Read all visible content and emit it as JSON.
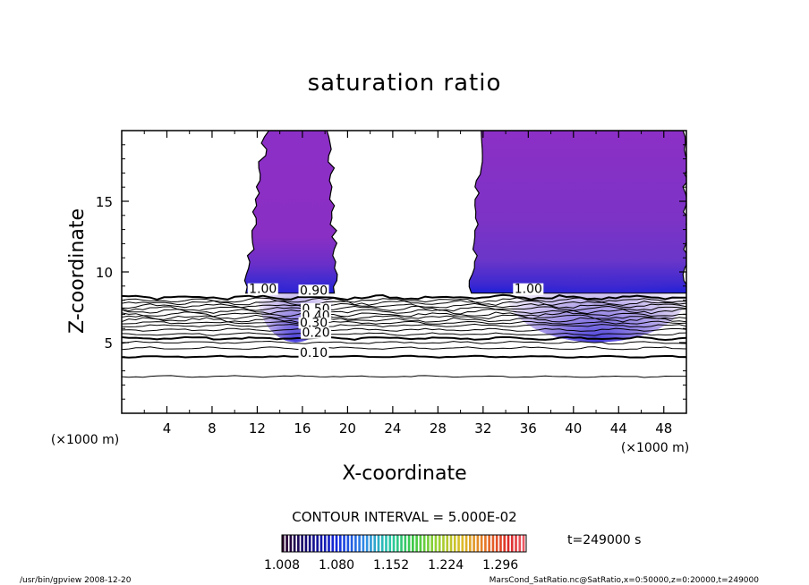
{
  "chart_data": {
    "type": "contour",
    "title": "saturation ratio",
    "xlabel": "X-coordinate",
    "ylabel": "Z-coordinate",
    "x_unit": "(×1000 m)",
    "z_unit": "(×1000 m)",
    "xlim": [
      0,
      50
    ],
    "zlim": [
      0,
      20
    ],
    "x_ticks": [
      4,
      8,
      12,
      16,
      20,
      24,
      28,
      32,
      36,
      40,
      44,
      48
    ],
    "z_ticks": [
      5,
      10,
      15
    ],
    "contour_interval_text": "CONTOUR INTERVAL = 5.000E-02",
    "contour_labels": [
      {
        "text": "1.00",
        "x": 12.5,
        "z": 8.5
      },
      {
        "text": "1.00",
        "x": 36.0,
        "z": 8.5
      },
      {
        "text": "0.90",
        "x": 17.0,
        "z": 8.4
      },
      {
        "text": "0.50",
        "x": 17.2,
        "z": 7.1
      },
      {
        "text": "0.40",
        "x": 17.2,
        "z": 6.6
      },
      {
        "text": "0.30",
        "x": 17.0,
        "z": 6.1
      },
      {
        "text": "0.20",
        "x": 17.2,
        "z": 5.4
      },
      {
        "text": "0.10",
        "x": 17.0,
        "z": 4.0
      }
    ],
    "contour_levels_below": [
      2.6,
      4.0,
      4.6,
      5.0,
      5.3,
      5.6,
      5.9,
      6.2,
      6.4,
      6.6,
      6.8,
      7.0,
      7.2,
      7.4,
      7.6,
      7.8,
      8.0,
      8.2
    ],
    "supersaturated_regions": [
      {
        "x_range": [
          11,
          19
        ],
        "z_range": [
          8.5,
          20
        ]
      },
      {
        "x_range": [
          31,
          50
        ],
        "z_range": [
          8.5,
          20
        ]
      }
    ],
    "colorbar": {
      "range": [
        1.008,
        1.33
      ],
      "tick_labels": [
        "1.008",
        "1.080",
        "1.152",
        "1.224",
        "1.296"
      ]
    },
    "time_label": "t=249000 s"
  },
  "footer": {
    "left": "/usr/bin/gpview   2008-12-20",
    "right": "MarsCond_SatRatio.nc@SatRatio,x=0:50000,z=0:20000,t=249000"
  }
}
